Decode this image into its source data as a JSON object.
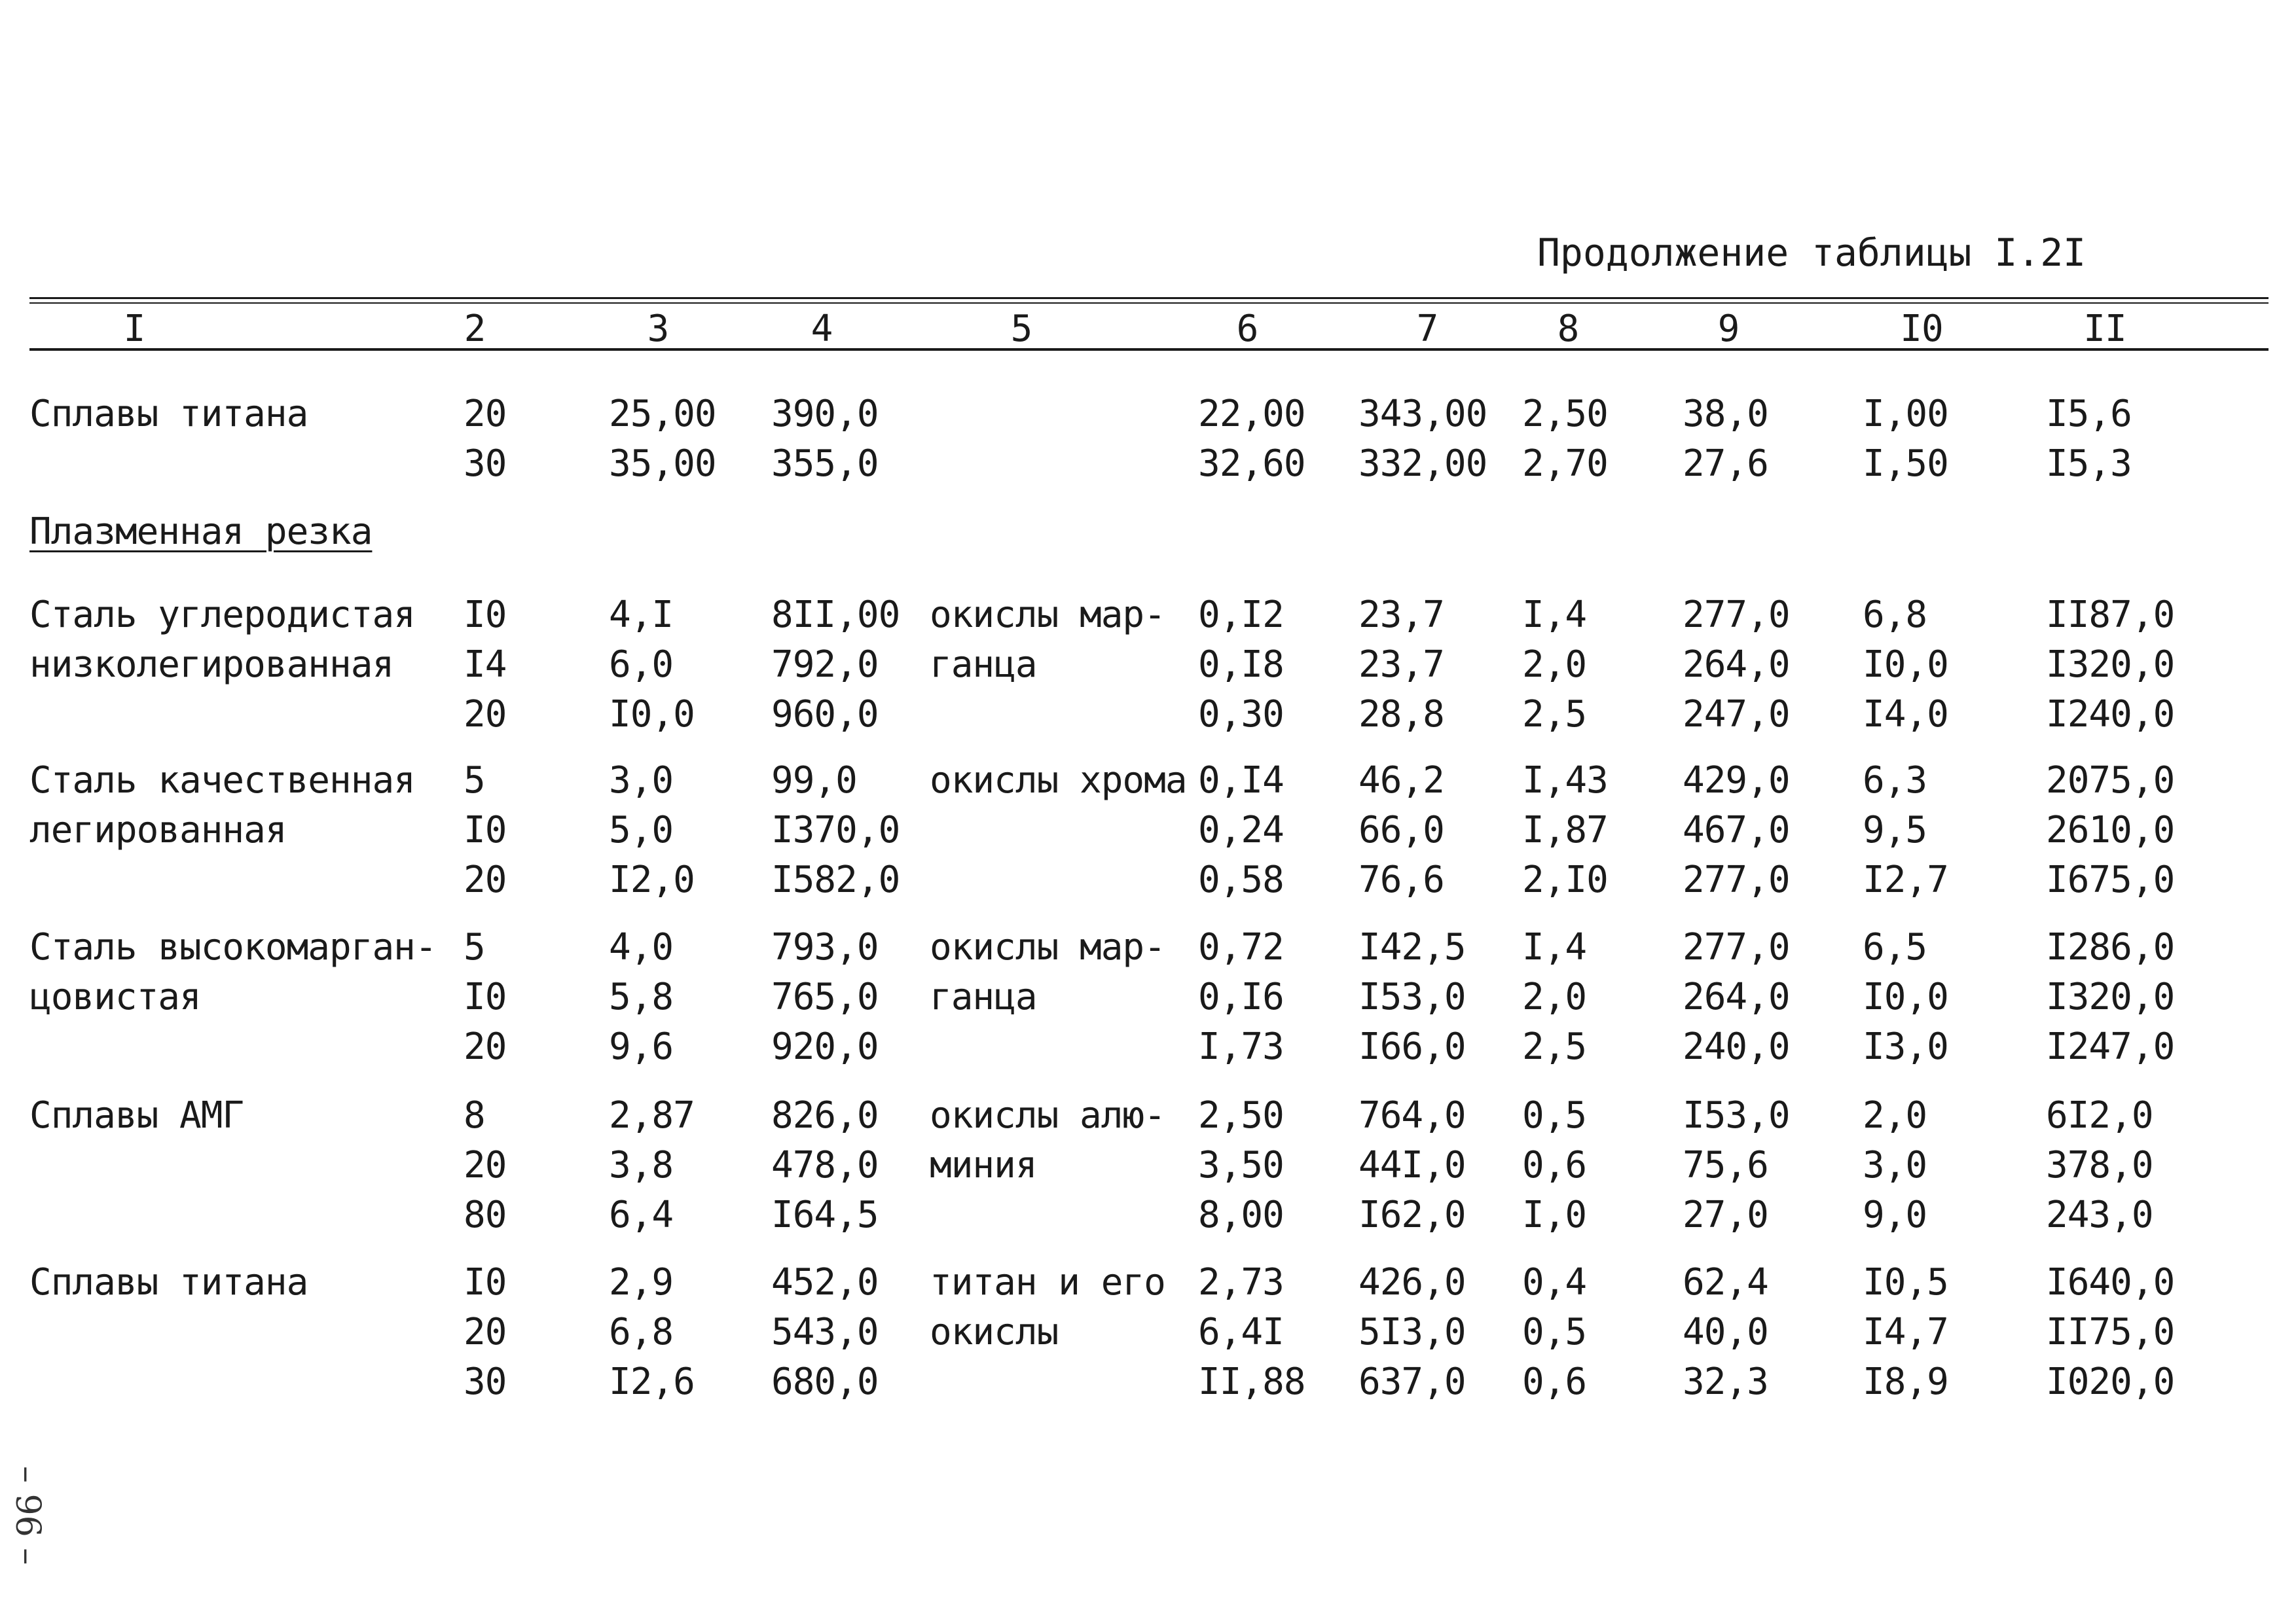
{
  "caption": "Продолжение таблицы I.2I",
  "headers": [
    "I",
    "2",
    "3",
    "4",
    "5",
    "6",
    "7",
    "8",
    "9",
    "I0",
    "II"
  ],
  "section_title": "Плазменная резка",
  "groups": [
    {
      "name": [
        "Сплавы титана"
      ],
      "rows": [
        [
          "20",
          "25,00",
          "390,0",
          "",
          "22,00",
          "343,00",
          "2,50",
          "38,0",
          "I,00",
          "I5,6"
        ],
        [
          "30",
          "35,00",
          "355,0",
          "",
          "32,60",
          "332,00",
          "2,70",
          "27,6",
          "I,50",
          "I5,3"
        ]
      ]
    },
    {
      "name": [
        "Сталь углеродистая",
        "низколегированная"
      ],
      "rows": [
        [
          "I0",
          "4,I",
          "8II,00",
          "окислы мар-",
          "0,I2",
          "23,7",
          "I,4",
          "277,0",
          "6,8",
          "II87,0"
        ],
        [
          "I4",
          "6,0",
          "792,0",
          "ганца",
          "0,I8",
          "23,7",
          "2,0",
          "264,0",
          "I0,0",
          "I320,0"
        ],
        [
          "20",
          "I0,0",
          "960,0",
          "",
          "0,30",
          "28,8",
          "2,5",
          "247,0",
          "I4,0",
          "I240,0"
        ]
      ]
    },
    {
      "name": [
        "Сталь качественная",
        "легированная"
      ],
      "rows": [
        [
          "5",
          "3,0",
          "99,0",
          "окислы хрома",
          "0,I4",
          "46,2",
          "I,43",
          "429,0",
          "6,3",
          "2075,0"
        ],
        [
          "I0",
          "5,0",
          "I370,0",
          "",
          "0,24",
          "66,0",
          "I,87",
          "467,0",
          "9,5",
          "2610,0"
        ],
        [
          "20",
          "I2,0",
          "I582,0",
          "",
          "0,58",
          "76,6",
          "2,I0",
          "277,0",
          "I2,7",
          "I675,0"
        ]
      ]
    },
    {
      "name": [
        "Сталь высокомарган-",
        "цовистая"
      ],
      "rows": [
        [
          "5",
          "4,0",
          "793,0",
          "окислы мар-",
          "0,72",
          "I42,5",
          "I,4",
          "277,0",
          "6,5",
          "I286,0"
        ],
        [
          "I0",
          "5,8",
          "765,0",
          "ганца",
          "0,I6",
          "I53,0",
          "2,0",
          "264,0",
          "I0,0",
          "I320,0"
        ],
        [
          "20",
          "9,6",
          "920,0",
          "",
          "I,73",
          "I66,0",
          "2,5",
          "240,0",
          "I3,0",
          "I247,0"
        ]
      ]
    },
    {
      "name": [
        "Сплавы АМГ"
      ],
      "rows": [
        [
          "8",
          "2,87",
          "826,0",
          "окислы алю-",
          "2,50",
          "764,0",
          "0,5",
          "I53,0",
          "2,0",
          "6I2,0"
        ],
        [
          "20",
          "3,8",
          "478,0",
          "миния",
          "3,50",
          "44I,0",
          "0,6",
          "75,6",
          "3,0",
          "378,0"
        ],
        [
          "80",
          "6,4",
          "I64,5",
          "",
          "8,00",
          "I62,0",
          "I,0",
          "27,0",
          "9,0",
          "243,0"
        ]
      ]
    },
    {
      "name": [
        "Сплавы титана"
      ],
      "rows": [
        [
          "I0",
          "2,9",
          "452,0",
          "титан и его",
          "2,73",
          "426,0",
          "0,4",
          "62,4",
          "I0,5",
          "I640,0"
        ],
        [
          "20",
          "6,8",
          "543,0",
          "окислы",
          "6,4I",
          "5I3,0",
          "0,5",
          "40,0",
          "I4,7",
          "II75,0"
        ],
        [
          "30",
          "I2,6",
          "680,0",
          "",
          "II,88",
          "637,0",
          "0,6",
          "32,3",
          "I8,9",
          "I020,0"
        ]
      ]
    }
  ],
  "margin_note": "– 96 –"
}
